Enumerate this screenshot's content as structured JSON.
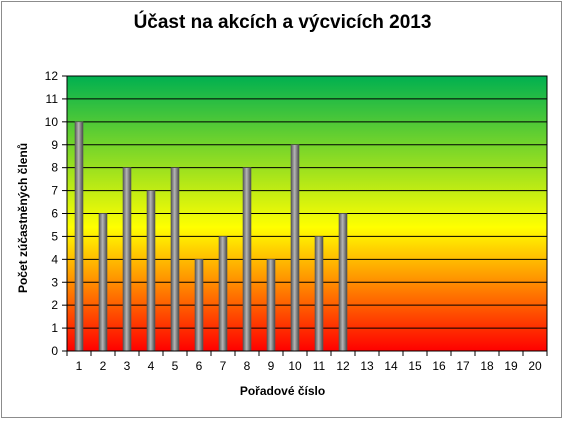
{
  "chart_data": {
    "type": "bar",
    "title": "Účast na akcích a výcvicích 2013",
    "xlabel": "Pořadové číslo",
    "ylabel": "Počet zúčastněných členů",
    "categories": [
      "1",
      "2",
      "3",
      "4",
      "5",
      "6",
      "7",
      "8",
      "9",
      "10",
      "11",
      "12",
      "13",
      "14",
      "15",
      "16",
      "17",
      "18",
      "19",
      "20"
    ],
    "values": [
      10,
      6,
      8,
      7,
      8,
      4,
      5,
      8,
      4,
      9,
      5,
      6,
      null,
      null,
      null,
      null,
      null,
      null,
      null,
      null
    ],
    "ylim": [
      0,
      12
    ],
    "yticks": [
      "0",
      "1",
      "2",
      "3",
      "4",
      "5",
      "6",
      "7",
      "8",
      "9",
      "10",
      "11",
      "12"
    ],
    "grid": true,
    "legend": "none",
    "background_gradient": [
      "#ff0000",
      "#ffff00",
      "#00b050"
    ],
    "bar_color": "#808080"
  }
}
